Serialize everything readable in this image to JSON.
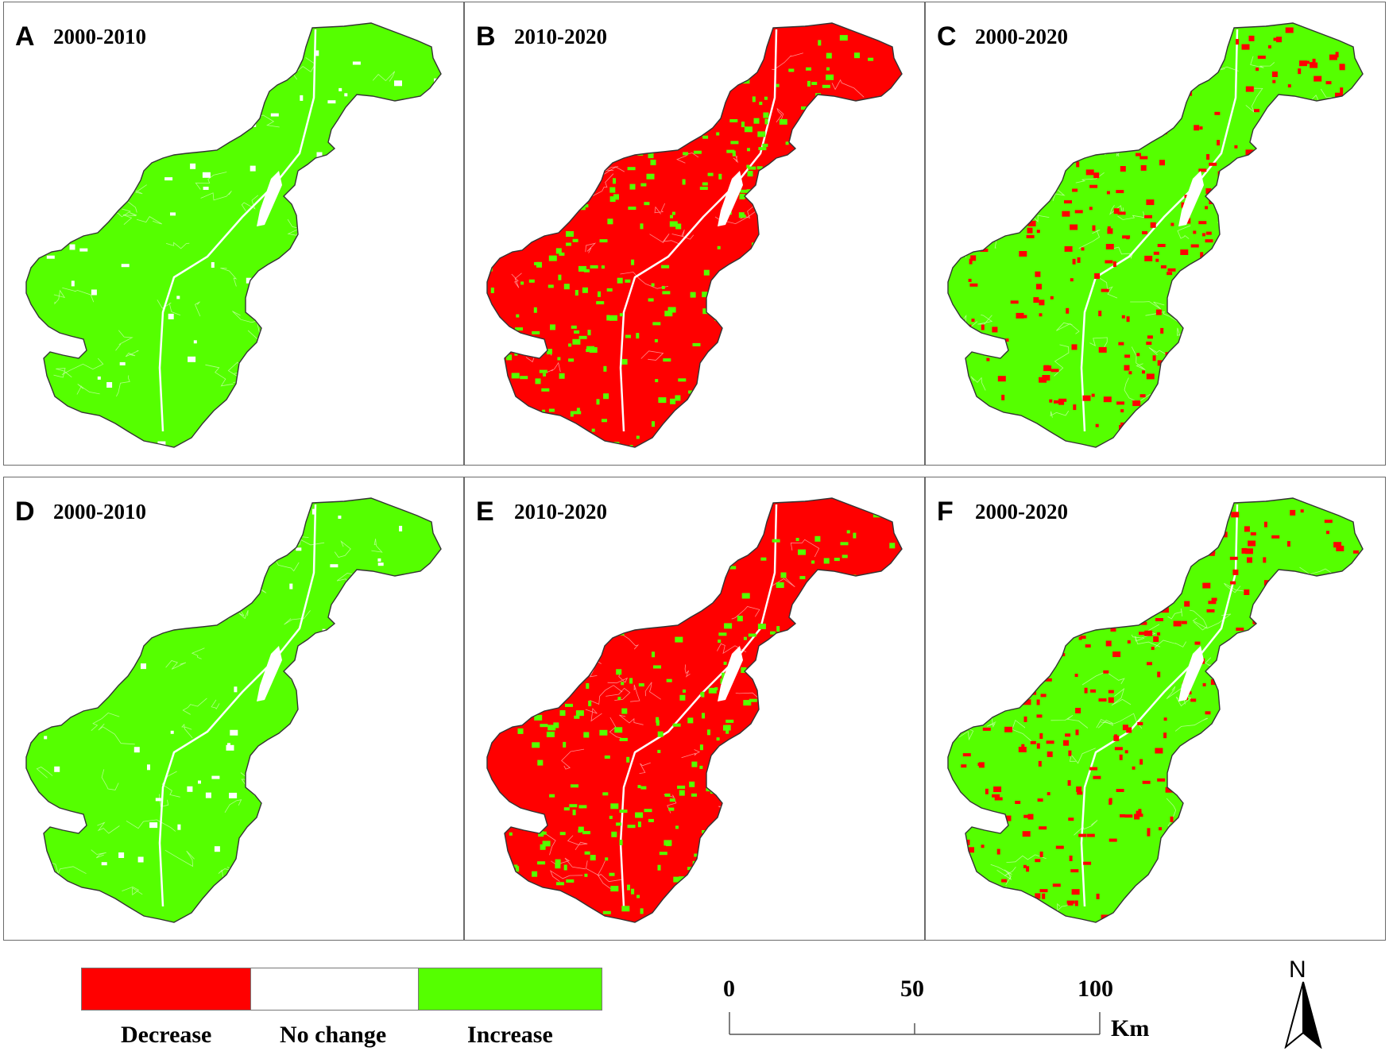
{
  "panels": [
    {
      "letter": "A",
      "period": "2000-2010",
      "dominant": "increase",
      "speckle": "nochange"
    },
    {
      "letter": "B",
      "period": "2010-2020",
      "dominant": "decrease",
      "speckle": "increase"
    },
    {
      "letter": "C",
      "period": "2000-2020",
      "dominant": "increase",
      "speckle": "decrease"
    },
    {
      "letter": "D",
      "period": "2000-2010",
      "dominant": "increase",
      "speckle": "nochange"
    },
    {
      "letter": "E",
      "period": "2010-2020",
      "dominant": "decrease",
      "speckle": "increase"
    },
    {
      "letter": "F",
      "period": "2000-2020",
      "dominant": "increase",
      "speckle": "decrease"
    }
  ],
  "legend": {
    "items": [
      {
        "label": "Decrease",
        "color": "#ff0000"
      },
      {
        "label": "No change",
        "color": "#ffffff"
      },
      {
        "label": "Increase",
        "color": "#55ff00"
      }
    ]
  },
  "scale": {
    "ticks": [
      "0",
      "50",
      "100"
    ],
    "unit": "Km"
  },
  "north": {
    "label": "N"
  }
}
